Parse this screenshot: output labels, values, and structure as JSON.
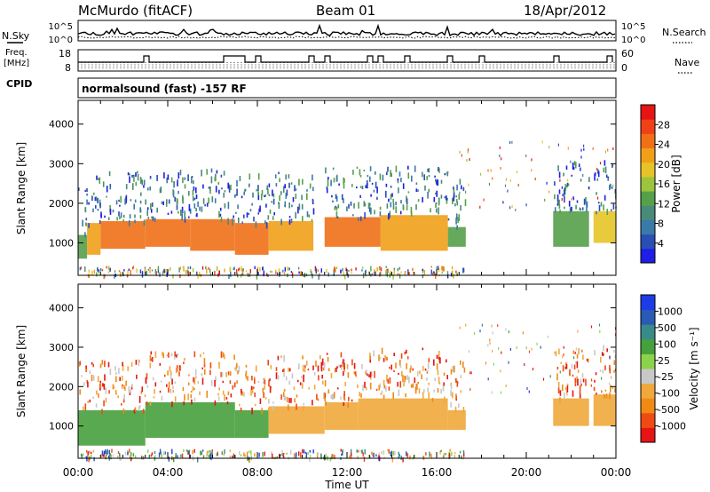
{
  "header": {
    "title": "McMurdo (fitACF)",
    "beam": "Beam 01",
    "date": "18/Apr/2012"
  },
  "noise_panel": {
    "left_label": "N.Sky",
    "right_label": "N.Search",
    "left_ticks": [
      "10^5",
      "10^0"
    ],
    "right_ticks": [
      "10^5",
      "10^0"
    ]
  },
  "freq_panel": {
    "left_label_1": "Freq.",
    "left_label_2": "[MHz]",
    "right_label": "Nave",
    "left_ticks": [
      "18",
      "8"
    ],
    "right_ticks": [
      "60",
      "0"
    ]
  },
  "cpid_panel": {
    "label": "CPID",
    "text": "normalsound (fast) -157 RF"
  },
  "colors": {
    "power_scale": [
      "#1e1ee6",
      "#2a4eb4",
      "#3a7aa8",
      "#4a8a7a",
      "#56a04a",
      "#9cc43c",
      "#e6c428",
      "#f0a018",
      "#f07018",
      "#f04018",
      "#e61414"
    ],
    "velocity_scale": [
      "#e61414",
      "#f04a14",
      "#f08a14",
      "#f0a83c",
      "#c8c8c8",
      "#8cd24a",
      "#46a03c",
      "#3a8a8a",
      "#2a5ab4",
      "#1e3ce6"
    ]
  },
  "chart_data": [
    {
      "type": "heatmap",
      "title": "",
      "xlabel": "Time UT",
      "ylabel": "Slant Range [km]",
      "xlim": [
        "00:00",
        "24:00"
      ],
      "ylim": [
        180,
        4600
      ],
      "x_ticks": [
        "00:00",
        "04:00",
        "08:00",
        "12:00",
        "16:00",
        "20:00",
        "00:00"
      ],
      "y_ticks": [
        1000,
        2000,
        3000,
        4000
      ],
      "colorbar": {
        "label": "Power [dB]",
        "min": 0,
        "max": 32,
        "ticks": [
          4,
          8,
          12,
          16,
          20,
          24,
          28
        ]
      },
      "bands": [
        {
          "t_start": 0.0,
          "t_end": 0.4,
          "r_low": 600,
          "r_high": 1200,
          "value": 14
        },
        {
          "t_start": 0.4,
          "t_end": 1.0,
          "r_low": 700,
          "r_high": 1500,
          "value": 22
        },
        {
          "t_start": 1.0,
          "t_end": 3.0,
          "r_low": 850,
          "r_high": 1550,
          "value": 24
        },
        {
          "t_start": 3.0,
          "t_end": 5.0,
          "r_low": 900,
          "r_high": 1600,
          "value": 26
        },
        {
          "t_start": 5.0,
          "t_end": 7.0,
          "r_low": 800,
          "r_high": 1600,
          "value": 25
        },
        {
          "t_start": 7.0,
          "t_end": 8.5,
          "r_low": 700,
          "r_high": 1500,
          "value": 24
        },
        {
          "t_start": 8.5,
          "t_end": 10.5,
          "r_low": 800,
          "r_high": 1550,
          "value": 22
        },
        {
          "t_start": 11.0,
          "t_end": 13.5,
          "r_low": 900,
          "r_high": 1650,
          "value": 24
        },
        {
          "t_start": 13.5,
          "t_end": 16.5,
          "r_low": 800,
          "r_high": 1700,
          "value": 22
        },
        {
          "t_start": 16.5,
          "t_end": 17.3,
          "r_low": 900,
          "r_high": 1400,
          "value": 12
        },
        {
          "t_start": 21.2,
          "t_end": 22.8,
          "r_low": 900,
          "r_high": 1800,
          "value": 14
        },
        {
          "t_start": 23.0,
          "t_end": 24.0,
          "r_low": 1000,
          "r_high": 1800,
          "value": 20
        }
      ]
    },
    {
      "type": "heatmap",
      "title": "",
      "xlabel": "Time UT",
      "ylabel": "Slant Range [km]",
      "xlim": [
        "00:00",
        "24:00"
      ],
      "ylim": [
        180,
        4600
      ],
      "x_ticks": [
        "00:00",
        "04:00",
        "08:00",
        "12:00",
        "16:00",
        "20:00",
        "00:00"
      ],
      "y_ticks": [
        1000,
        2000,
        3000,
        4000
      ],
      "colorbar": {
        "label": "Velocity [m s⁻¹]",
        "ticks": [
          1000,
          500,
          100,
          25,
          -25,
          -100,
          -500,
          -1000
        ]
      },
      "bands": [
        {
          "t_start": 0.0,
          "t_end": 3.0,
          "r_low": 500,
          "r_high": 1400,
          "value": 80
        },
        {
          "t_start": 3.0,
          "t_end": 7.0,
          "r_low": 700,
          "r_high": 1600,
          "value": 60
        },
        {
          "t_start": 7.0,
          "t_end": 8.5,
          "r_low": 700,
          "r_high": 1400,
          "value": 40
        },
        {
          "t_start": 8.5,
          "t_end": 11.0,
          "r_low": 800,
          "r_high": 1500,
          "value": -150
        },
        {
          "t_start": 11.0,
          "t_end": 12.5,
          "r_low": 900,
          "r_high": 1600,
          "value": -200
        },
        {
          "t_start": 12.5,
          "t_end": 16.5,
          "r_low": 900,
          "r_high": 1700,
          "value": -150
        },
        {
          "t_start": 16.5,
          "t_end": 17.3,
          "r_low": 900,
          "r_high": 1400,
          "value": -300
        },
        {
          "t_start": 21.2,
          "t_end": 22.8,
          "r_low": 1000,
          "r_high": 1700,
          "value": -200
        },
        {
          "t_start": 23.0,
          "t_end": 24.0,
          "r_low": 1000,
          "r_high": 1800,
          "value": -120
        }
      ]
    }
  ]
}
